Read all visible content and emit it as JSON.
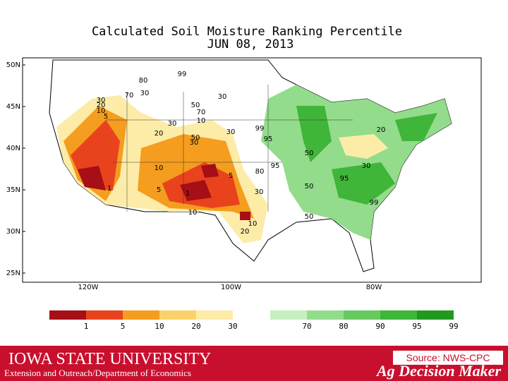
{
  "header": {
    "title": "Calculated Soil Moisture Ranking Percentile",
    "date": "JUN 08, 2013"
  },
  "map": {
    "lat_labels": [
      "50N",
      "45N",
      "40N",
      "35N",
      "30N",
      "25N"
    ],
    "lon_labels": [
      "120W",
      "100W",
      "80W"
    ],
    "contour_labels": [
      "80",
      "99",
      "70",
      "30",
      "30",
      "30",
      "20",
      "10",
      "5",
      "50",
      "70",
      "10",
      "30",
      "30",
      "20",
      "50",
      "30",
      "99",
      "95",
      "50",
      "95",
      "80",
      "30",
      "95",
      "50",
      "10",
      "5",
      "1",
      "5",
      "1",
      "30",
      "99",
      "10",
      "50",
      "10",
      "20",
      "20"
    ]
  },
  "legend": [
    {
      "label": "1",
      "color": "#a50f15"
    },
    {
      "label": "5",
      "color": "#e8431c"
    },
    {
      "label": "10",
      "color": "#f59d1e"
    },
    {
      "label": "20",
      "color": "#fbd26a"
    },
    {
      "label": "30",
      "color": "#fdeca8"
    },
    {
      "label": "70",
      "color": "#c6efc0"
    },
    {
      "label": "80",
      "color": "#93dc8b"
    },
    {
      "label": "90",
      "color": "#67c95f"
    },
    {
      "label": "95",
      "color": "#3fb53a"
    },
    {
      "label": "99",
      "color": "#1f9a1f"
    }
  ],
  "footer": {
    "university": "IOWA STATE UNIVERSITY",
    "department": "Extension and Outreach/Department of Economics",
    "source": "Source: NWS-CPC",
    "brand": "Ag Decision Maker"
  }
}
